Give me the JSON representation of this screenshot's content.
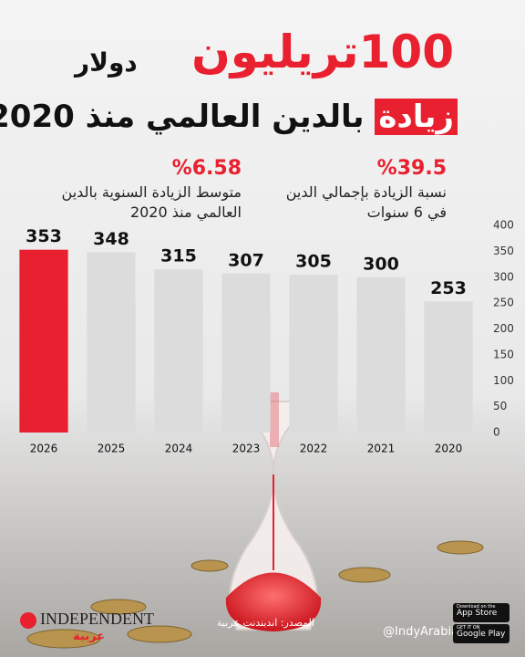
{
  "header": {
    "title_number": "100",
    "title_unit": "تريليون",
    "title_currency": "دولار",
    "subtitle_highlight": "زيادة",
    "subtitle": "بالدين العالمي منذ 2020"
  },
  "stats": [
    {
      "value": "%39.5",
      "label": "نسبة الزيادة بإجمالي الدين في 6 سنوات"
    },
    {
      "value": "%6.58",
      "label": "متوسط الزيادة السنوية بالدين العالمي منذ 2020"
    }
  ],
  "chart_data": {
    "type": "bar",
    "categories": [
      "2026",
      "2025",
      "2024",
      "2023",
      "2022",
      "2021",
      "2020"
    ],
    "values": [
      353,
      348,
      315,
      307,
      305,
      300,
      253
    ],
    "bar_colors": [
      "#e8202f",
      "#dcdcdc",
      "#dcdcdc",
      "#dcdcdc",
      "#dcdcdc",
      "#dcdcdc",
      "#dcdcdc"
    ],
    "ylim": [
      0,
      400
    ],
    "yticks": [
      0,
      50,
      100,
      150,
      200,
      250,
      300,
      350,
      400
    ],
    "y_axis_side": "right"
  },
  "footer": {
    "source": "المصدر: اندبندنت عربية",
    "logo": "INDEPENDENT",
    "logo_sub": "عربية",
    "handle": "@IndyArabia",
    "app_store_top": "Download on the",
    "app_store": "App Store",
    "google_play_top": "GET IT ON",
    "google_play": "Google Play"
  }
}
